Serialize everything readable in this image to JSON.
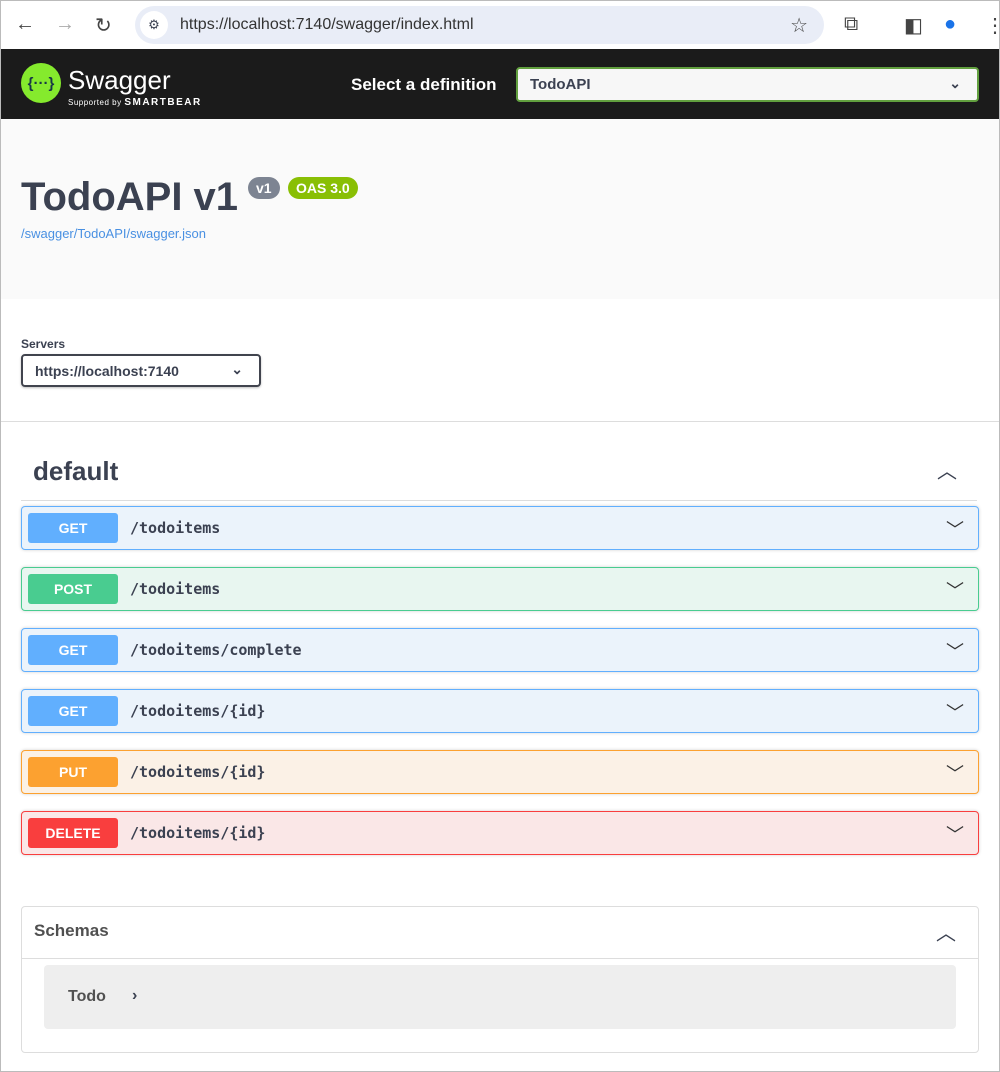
{
  "browser": {
    "url": "https://localhost:7140/swagger/index.html"
  },
  "header": {
    "brand": "Swagger",
    "supported_by": "Supported by",
    "smartbear": "SMARTBEAR",
    "logo_text": "{...}",
    "definition_label": "Select a definition",
    "definition_value": "TodoAPI"
  },
  "info": {
    "title": "TodoAPI v1",
    "version_badge": "v1",
    "oas_badge": "OAS 3.0",
    "spec_link": "/swagger/TodoAPI/swagger.json"
  },
  "servers": {
    "label": "Servers",
    "selected": "https://localhost:7140"
  },
  "tag": {
    "name": "default"
  },
  "operations": [
    {
      "method": "GET",
      "path": "/todoitems"
    },
    {
      "method": "POST",
      "path": "/todoitems"
    },
    {
      "method": "GET",
      "path": "/todoitems/complete"
    },
    {
      "method": "GET",
      "path": "/todoitems/{id}"
    },
    {
      "method": "PUT",
      "path": "/todoitems/{id}"
    },
    {
      "method": "DELETE",
      "path": "/todoitems/{id}"
    }
  ],
  "colors": {
    "GET": "#61affe",
    "POST": "#49cc90",
    "PUT": "#fca130",
    "DELETE": "#f93e3e",
    "accent": "#85ea2d",
    "oas": "#89bf04",
    "version": "#7d8492"
  },
  "schemas": {
    "title": "Schemas",
    "models": [
      {
        "name": "Todo"
      }
    ]
  }
}
